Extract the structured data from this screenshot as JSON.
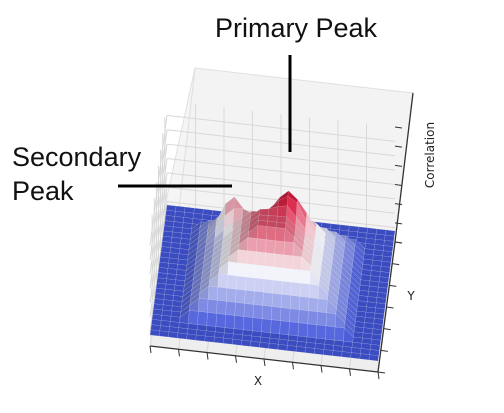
{
  "chart_data": {
    "type": "surface",
    "surface_style": "3d-stepped-pyramid",
    "xlabel": "X",
    "ylabel": "Y",
    "zlabel": "Correlation",
    "colormap": "coolwarm",
    "colormap_low": "#3b4cc0",
    "colormap_high": "#b40426",
    "grid": true,
    "annotations": [
      {
        "id": "primary",
        "text": "Primary Peak"
      },
      {
        "id": "secondary",
        "lines": [
          "Secondary",
          "Peak"
        ]
      }
    ]
  }
}
